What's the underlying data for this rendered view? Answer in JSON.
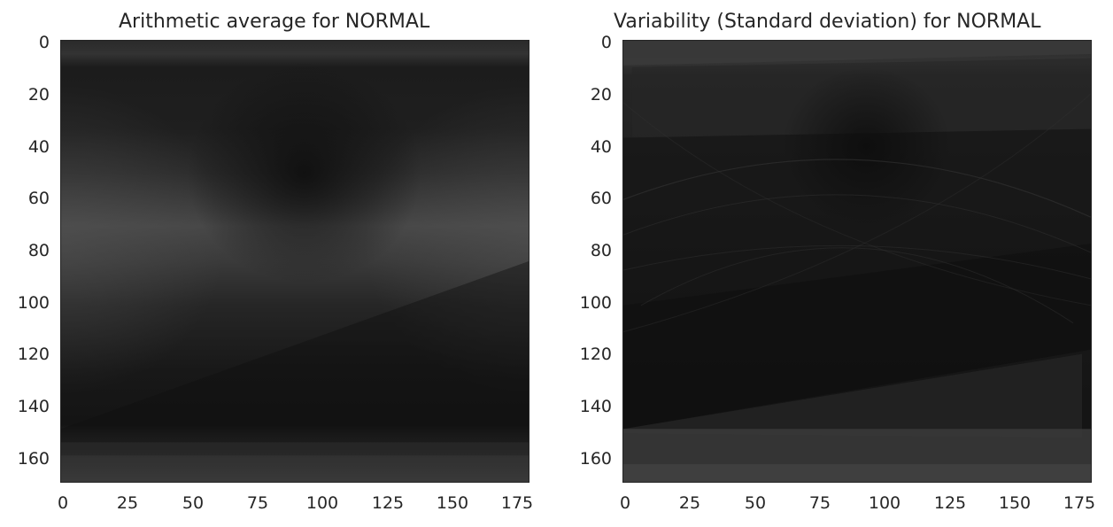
{
  "panels": [
    {
      "title": "Arithmetic average for NORMAL",
      "yticks": [
        "0",
        "20",
        "40",
        "60",
        "80",
        "100",
        "120",
        "140",
        "160"
      ],
      "xticks": [
        "0",
        "25",
        "50",
        "75",
        "100",
        "125",
        "150",
        "175"
      ]
    },
    {
      "title": "Variability (Standard deviation) for NORMAL",
      "yticks": [
        "0",
        "20",
        "40",
        "60",
        "80",
        "100",
        "120",
        "140",
        "160"
      ],
      "xticks": [
        "0",
        "25",
        "50",
        "75",
        "100",
        "125",
        "150",
        "175"
      ]
    }
  ],
  "colors": {
    "axis": "#262626",
    "image_dark": "#111111",
    "image_light": "#5a5a5a"
  }
}
